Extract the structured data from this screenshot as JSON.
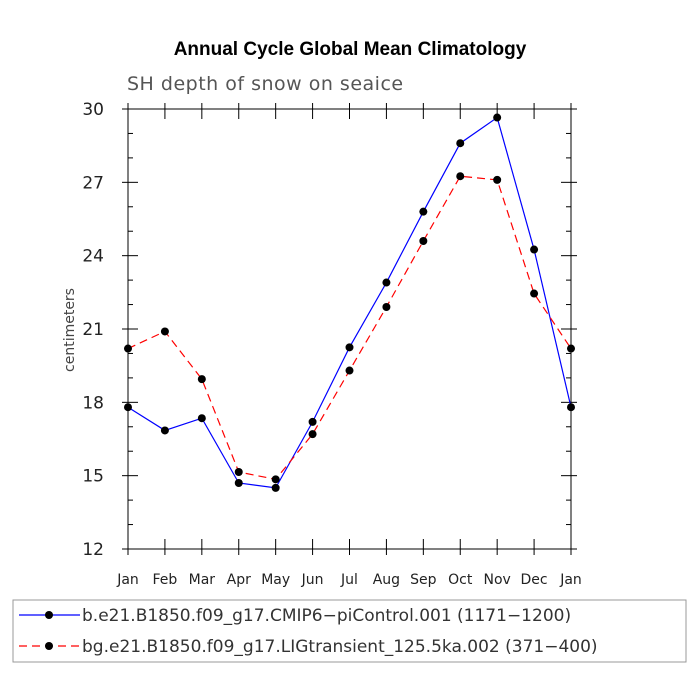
{
  "chart_data": {
    "type": "line",
    "title": "Annual Cycle Global Mean Climatology",
    "subtitle": "SH depth of snow on seaice",
    "xlabel": "",
    "ylabel": "centimeters",
    "categories": [
      "Jan",
      "Feb",
      "Mar",
      "Apr",
      "May",
      "Jun",
      "Jul",
      "Aug",
      "Sep",
      "Oct",
      "Nov",
      "Dec",
      "Jan"
    ],
    "ylim": [
      12,
      30
    ],
    "yticks": [
      12,
      15,
      18,
      21,
      24,
      27,
      30
    ],
    "series": [
      {
        "name": "b.e21.B1850.f09_g17.CMIP6−piControl.001 (1171−1200)",
        "color": "#0000ff",
        "dash": "solid",
        "values": [
          17.8,
          16.85,
          17.35,
          14.7,
          14.5,
          17.2,
          20.25,
          22.9,
          25.8,
          28.6,
          29.65,
          24.25,
          17.8
        ]
      },
      {
        "name": "bg.e21.B1850.f09_g17.LIGtransient_125.5ka.002 (371−400)",
        "color": "#ff0000",
        "dash": "dashed",
        "values": [
          20.2,
          20.9,
          18.95,
          15.15,
          14.85,
          16.7,
          19.3,
          21.9,
          24.6,
          27.25,
          27.1,
          22.45,
          20.2
        ]
      }
    ]
  }
}
